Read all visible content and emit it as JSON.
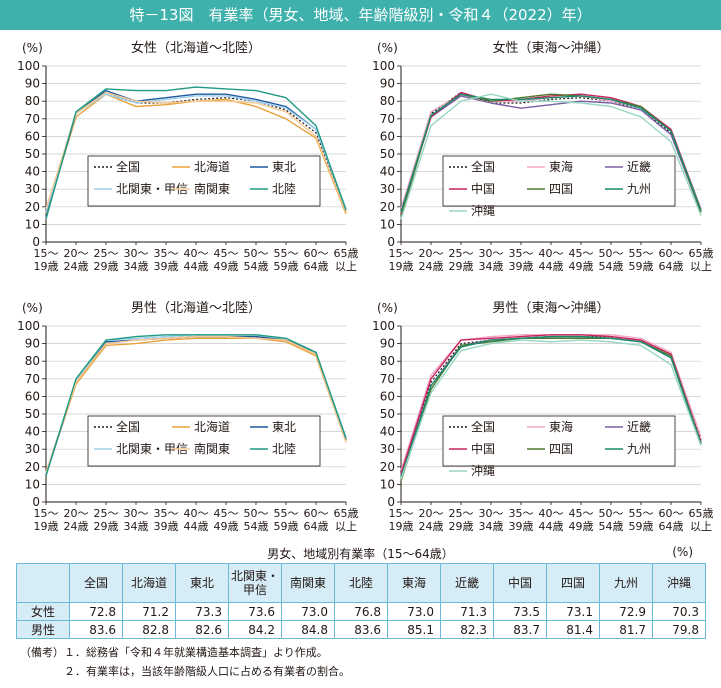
{
  "title": "特－13図　有業率（男女、地域、年齢階級別・令和４（2022）年）",
  "chart_data": [
    {
      "type": "line",
      "title": "女性（北海道〜北陸）",
      "ylabel": "(%)",
      "ylim": [
        0,
        100
      ],
      "yticks": [
        0,
        10,
        20,
        30,
        40,
        50,
        60,
        70,
        80,
        90,
        100
      ],
      "categories": [
        [
          "15〜",
          "19歳"
        ],
        [
          "20〜",
          "24歳"
        ],
        [
          "25〜",
          "29歳"
        ],
        [
          "30〜",
          "34歳"
        ],
        [
          "35〜",
          "39歳"
        ],
        [
          "40〜",
          "44歳"
        ],
        [
          "45〜",
          "49歳"
        ],
        [
          "50〜",
          "54歳"
        ],
        [
          "55〜",
          "59歳"
        ],
        [
          "60〜",
          "64歳"
        ],
        [
          "65歳",
          "以上"
        ]
      ],
      "legend": "center",
      "series": [
        {
          "name": "全国",
          "color": "#231815",
          "dash": "2,2",
          "values": [
            17,
            73,
            85,
            79,
            79,
            81,
            82,
            80,
            75,
            62,
            18
          ]
        },
        {
          "name": "北海道",
          "color": "#e8a23c",
          "dash": "",
          "values": [
            16,
            71,
            84,
            77,
            78,
            80,
            81,
            77,
            70,
            59,
            16
          ]
        },
        {
          "name": "東北",
          "color": "#1f5a9e",
          "dash": "",
          "values": [
            14,
            73,
            86,
            80,
            82,
            84,
            84,
            81,
            77,
            64,
            19
          ]
        },
        {
          "name": "北関東・甲信",
          "color": "#9fd1ee",
          "dash": "",
          "values": [
            17,
            73,
            84,
            79,
            81,
            83,
            83,
            80,
            76,
            64,
            19
          ]
        },
        {
          "name": "南関東",
          "color": "#f5c894",
          "dash": "",
          "values": [
            19,
            73,
            85,
            80,
            79,
            80,
            80,
            79,
            74,
            60,
            17
          ]
        },
        {
          "name": "北陸",
          "color": "#1f9a82",
          "dash": "",
          "values": [
            13,
            74,
            87,
            86,
            86,
            88,
            87,
            86,
            82,
            66,
            18
          ]
        }
      ]
    },
    {
      "type": "line",
      "title": "女性（東海〜沖縄）",
      "ylabel": "(%)",
      "ylim": [
        0,
        100
      ],
      "yticks": [
        0,
        10,
        20,
        30,
        40,
        50,
        60,
        70,
        80,
        90,
        100
      ],
      "categories": [
        [
          "15〜",
          "19歳"
        ],
        [
          "20〜",
          "24歳"
        ],
        [
          "25〜",
          "29歳"
        ],
        [
          "30〜",
          "34歳"
        ],
        [
          "35〜",
          "39歳"
        ],
        [
          "40〜",
          "44歳"
        ],
        [
          "45〜",
          "49歳"
        ],
        [
          "50〜",
          "54歳"
        ],
        [
          "55〜",
          "59歳"
        ],
        [
          "60〜",
          "64歳"
        ],
        [
          "65歳",
          "以上"
        ]
      ],
      "legend": "center",
      "series": [
        {
          "name": "全国",
          "color": "#231815",
          "dash": "2,2",
          "values": [
            17,
            73,
            85,
            79,
            79,
            81,
            82,
            80,
            75,
            62,
            18
          ]
        },
        {
          "name": "東海",
          "color": "#f3a6c8",
          "dash": "",
          "values": [
            19,
            74,
            84,
            80,
            80,
            82,
            83,
            80,
            77,
            64,
            19
          ]
        },
        {
          "name": "近畿",
          "color": "#7b5fa6",
          "dash": "",
          "values": [
            17,
            71,
            83,
            79,
            76,
            78,
            80,
            79,
            75,
            61,
            17
          ]
        },
        {
          "name": "中国",
          "color": "#c8245e",
          "dash": "",
          "values": [
            16,
            71,
            85,
            80,
            81,
            83,
            84,
            82,
            77,
            64,
            18
          ]
        },
        {
          "name": "四国",
          "color": "#4d7a2c",
          "dash": "",
          "values": [
            14,
            72,
            84,
            80,
            82,
            84,
            83,
            81,
            77,
            63,
            17
          ]
        },
        {
          "name": "九州",
          "color": "#1a8a6d",
          "dash": "",
          "values": [
            17,
            72,
            84,
            81,
            81,
            82,
            83,
            81,
            76,
            63,
            18
          ]
        },
        {
          "name": "沖縄",
          "color": "#98d6c3",
          "dash": "",
          "values": [
            13,
            66,
            80,
            84,
            80,
            80,
            79,
            77,
            71,
            57,
            15
          ]
        }
      ]
    },
    {
      "type": "line",
      "title": "男性（北海道〜北陸）",
      "ylabel": "(%)",
      "ylim": [
        0,
        100
      ],
      "yticks": [
        0,
        10,
        20,
        30,
        40,
        50,
        60,
        70,
        80,
        90,
        100
      ],
      "categories": [
        [
          "15〜",
          "19歳"
        ],
        [
          "20〜",
          "24歳"
        ],
        [
          "25〜",
          "29歳"
        ],
        [
          "30〜",
          "34歳"
        ],
        [
          "35〜",
          "39歳"
        ],
        [
          "40〜",
          "44歳"
        ],
        [
          "45〜",
          "49歳"
        ],
        [
          "50〜",
          "54歳"
        ],
        [
          "55〜",
          "59歳"
        ],
        [
          "60〜",
          "64歳"
        ],
        [
          "65歳",
          "以上"
        ]
      ],
      "legend": "center",
      "series": [
        {
          "name": "全国",
          "color": "#231815",
          "dash": "2,2",
          "values": [
            16,
            68,
            90,
            92,
            93,
            94,
            94,
            94,
            92,
            84,
            35
          ]
        },
        {
          "name": "北海道",
          "color": "#e8a23c",
          "dash": "",
          "values": [
            16,
            67,
            89,
            90,
            92,
            93,
            93,
            93,
            91,
            83,
            34
          ]
        },
        {
          "name": "東北",
          "color": "#1f5a9e",
          "dash": "",
          "values": [
            15,
            69,
            91,
            92,
            93,
            94,
            94,
            94,
            92,
            85,
            36
          ]
        },
        {
          "name": "北関東・甲信",
          "color": "#9fd1ee",
          "dash": "",
          "values": [
            16,
            69,
            92,
            93,
            94,
            95,
            95,
            95,
            93,
            85,
            37
          ]
        },
        {
          "name": "南関東",
          "color": "#f5c894",
          "dash": "",
          "values": [
            17,
            68,
            90,
            92,
            93,
            94,
            94,
            93,
            92,
            84,
            34
          ]
        },
        {
          "name": "北陸",
          "color": "#1f9a82",
          "dash": "",
          "values": [
            15,
            70,
            92,
            94,
            95,
            95,
            95,
            95,
            93,
            85,
            36
          ]
        }
      ]
    },
    {
      "type": "line",
      "title": "男性（東海〜沖縄）",
      "ylabel": "(%)",
      "ylim": [
        0,
        100
      ],
      "yticks": [
        0,
        10,
        20,
        30,
        40,
        50,
        60,
        70,
        80,
        90,
        100
      ],
      "categories": [
        [
          "15〜",
          "19歳"
        ],
        [
          "20〜",
          "24歳"
        ],
        [
          "25〜",
          "29歳"
        ],
        [
          "30〜",
          "34歳"
        ],
        [
          "35〜",
          "39歳"
        ],
        [
          "40〜",
          "44歳"
        ],
        [
          "45〜",
          "49歳"
        ],
        [
          "50〜",
          "54歳"
        ],
        [
          "55〜",
          "59歳"
        ],
        [
          "60〜",
          "64歳"
        ],
        [
          "65歳",
          "以上"
        ]
      ],
      "legend": "center",
      "series": [
        {
          "name": "全国",
          "color": "#231815",
          "dash": "2,2",
          "values": [
            16,
            68,
            90,
            92,
            93,
            94,
            94,
            94,
            92,
            84,
            35
          ]
        },
        {
          "name": "東海",
          "color": "#f3a6c8",
          "dash": "",
          "values": [
            18,
            72,
            92,
            94,
            95,
            95,
            95,
            95,
            93,
            85,
            37
          ]
        },
        {
          "name": "近畿",
          "color": "#7b5fa6",
          "dash": "",
          "values": [
            15,
            66,
            89,
            92,
            93,
            94,
            94,
            93,
            91,
            82,
            33
          ]
        },
        {
          "name": "中国",
          "color": "#c8245e",
          "dash": "",
          "values": [
            16,
            70,
            92,
            93,
            94,
            95,
            95,
            94,
            92,
            84,
            34
          ]
        },
        {
          "name": "四国",
          "color": "#4d7a2c",
          "dash": "",
          "values": [
            12,
            64,
            89,
            91,
            93,
            93,
            93,
            93,
            91,
            83,
            33
          ]
        },
        {
          "name": "九州",
          "color": "#1a8a6d",
          "dash": "",
          "values": [
            14,
            66,
            88,
            92,
            93,
            94,
            94,
            93,
            91,
            82,
            33
          ]
        },
        {
          "name": "沖縄",
          "color": "#98d6c3",
          "dash": "",
          "values": [
            13,
            62,
            86,
            90,
            92,
            91,
            92,
            91,
            89,
            78,
            32
          ]
        }
      ]
    }
  ],
  "table": {
    "title": "男女、地域別有業率（15〜64歳）",
    "unit": "(%)",
    "headers": [
      "全国",
      "北海道",
      "東北",
      "北関東・\n甲信",
      "南関東",
      "北陸",
      "東海",
      "近畿",
      "中国",
      "四国",
      "九州",
      "沖縄"
    ],
    "rows": [
      {
        "label": "女性",
        "values": [
          "72.8",
          "71.2",
          "73.3",
          "73.6",
          "73.0",
          "76.8",
          "73.0",
          "71.3",
          "73.5",
          "73.1",
          "72.9",
          "70.3"
        ]
      },
      {
        "label": "男性",
        "values": [
          "83.6",
          "82.8",
          "82.6",
          "84.2",
          "84.8",
          "83.6",
          "85.1",
          "82.3",
          "83.7",
          "81.4",
          "81.7",
          "79.8"
        ]
      }
    ]
  },
  "notes": [
    "（備考）１．総務省「令和４年就業構造基本調査」より作成。",
    "　　　　２．有業率は，当該年齢階級人口に占める有業者の割合。"
  ]
}
